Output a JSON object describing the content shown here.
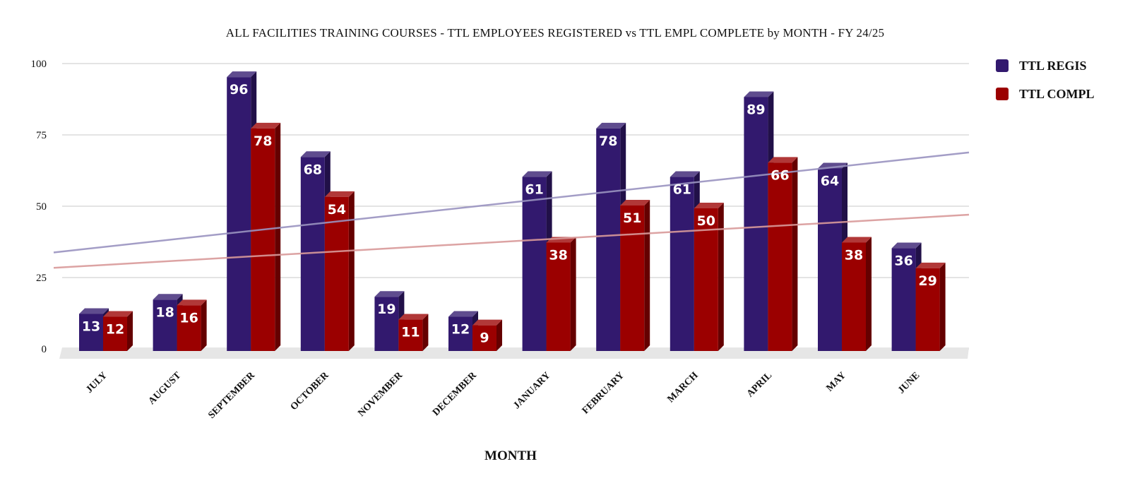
{
  "chart_data": {
    "type": "bar",
    "title": "ALL FACILITIES TRAINING COURSES - TTL EMPLOYEES REGISTERED vs TTL EMPL COMPLETE by MONTH -  FY 24/25",
    "xlabel": "MONTH",
    "ylabel": "",
    "ylim": [
      0,
      100
    ],
    "yticks": [
      "0",
      "25",
      "50",
      "75",
      "100"
    ],
    "categories": [
      "JULY",
      "AUGUST",
      "SEPTEMBER",
      "OCTOBER",
      "NOVEMBER",
      "DECEMBER",
      "JANUARY",
      "FEBRUARY",
      "MARCH",
      "APRIL",
      "MAY",
      "JUNE"
    ],
    "series": [
      {
        "name": "TTL REGIS",
        "color": "#32196e",
        "values": [
          13,
          18,
          96,
          68,
          19,
          12,
          61,
          78,
          61,
          89,
          64,
          36
        ]
      },
      {
        "name": "TTL COMPL",
        "color": "#9b0000",
        "values": [
          12,
          16,
          78,
          54,
          11,
          9,
          38,
          51,
          50,
          66,
          38,
          29
        ]
      }
    ],
    "trendlines": true,
    "grid": true,
    "legend_position": "top-right",
    "style": "3d-columns"
  }
}
